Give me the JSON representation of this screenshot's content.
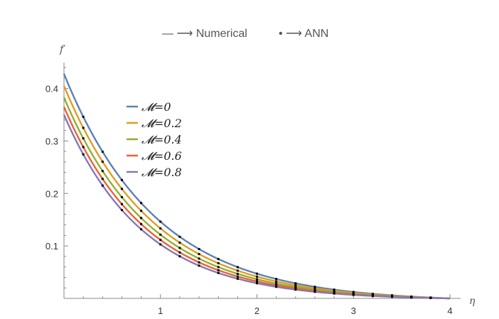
{
  "chart_data": {
    "type": "line",
    "top_legend": {
      "line_entry": "— ⟶ Numerical",
      "dot_entry": "• ⟶ ANN"
    },
    "xlabel": "η",
    "ylabel": "f′",
    "xlim": [
      0,
      4
    ],
    "ylim": [
      0,
      0.44
    ],
    "x_ticks": [
      1,
      2,
      3,
      4
    ],
    "y_ticks": [
      0.1,
      0.2,
      0.3,
      0.4
    ],
    "grid": false,
    "legend_position": "upper-left inside plot",
    "series": [
      {
        "name": "𝓜=0",
        "f0": 0.428,
        "decay": 1.045,
        "color": "#5e81b5"
      },
      {
        "name": "𝓜=0.2",
        "f0": 0.405,
        "decay": 1.085,
        "color": "#e19c24"
      },
      {
        "name": "𝓜=0.4",
        "f0": 0.383,
        "decay": 1.125,
        "color": "#8fb032"
      },
      {
        "name": "𝓜=0.6",
        "f0": 0.365,
        "decay": 1.165,
        "color": "#eb6235"
      },
      {
        "name": "𝓜=0.8",
        "f0": 0.35,
        "decay": 1.205,
        "color": "#8778b3"
      }
    ],
    "ann_marker_step": 0.2,
    "marker_color": "#000000"
  }
}
